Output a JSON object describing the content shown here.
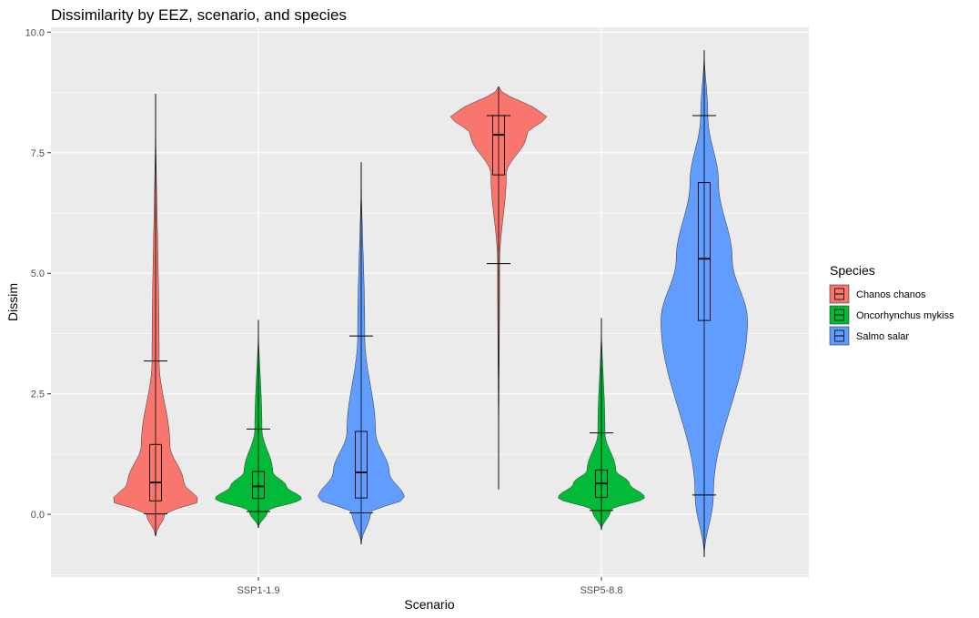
{
  "chart_data": {
    "type": "violin",
    "title": "Dissimilarity by EEZ, scenario, and species",
    "xlabel": "Scenario",
    "ylabel": "Dissim",
    "categories": [
      "SSP1-1.9",
      "SSP5-8.8"
    ],
    "ylim": [
      -1.3,
      10.1
    ],
    "yticks": [
      0.0,
      2.5,
      5.0,
      7.5,
      10.0
    ],
    "ytick_labels": [
      "0.0",
      "2.5",
      "5.0",
      "7.5",
      "10.0"
    ],
    "grid": true,
    "legend": {
      "title": "Species",
      "position": "right"
    },
    "series": [
      {
        "name": "Chanos chanos",
        "color": "#F8766D",
        "values": [
          {
            "category": "SSP1-1.9",
            "min": 0.01,
            "q1": 0.28,
            "median": 0.66,
            "q3": 1.45,
            "max": 3.18,
            "violin_min": -0.45,
            "violin_max": 8.72
          },
          {
            "category": "SSP5-8.8",
            "min": 5.2,
            "q1": 7.04,
            "median": 7.87,
            "q3": 8.27,
            "max": 8.27,
            "violin_min": 0.52,
            "violin_max": 8.87
          }
        ]
      },
      {
        "name": "Oncorhynchus mykiss",
        "color": "#00BA38",
        "values": [
          {
            "category": "SSP1-1.9",
            "min": 0.06,
            "q1": 0.33,
            "median": 0.58,
            "q3": 0.89,
            "max": 1.77,
            "violin_min": -0.28,
            "violin_max": 4.03
          },
          {
            "category": "SSP5-8.8",
            "min": 0.08,
            "q1": 0.35,
            "median": 0.64,
            "q3": 0.92,
            "max": 1.69,
            "violin_min": -0.32,
            "violin_max": 4.07
          }
        ]
      },
      {
        "name": "Salmo salar",
        "color": "#619CFF",
        "values": [
          {
            "category": "SSP1-1.9",
            "min": 0.03,
            "q1": 0.34,
            "median": 0.87,
            "q3": 1.72,
            "max": 3.7,
            "violin_min": -0.62,
            "violin_max": 7.3
          },
          {
            "category": "SSP5-8.8",
            "min": 0.4,
            "q1": 4.02,
            "median": 5.3,
            "q3": 6.88,
            "max": 8.27,
            "violin_min": -0.88,
            "violin_max": 9.62
          }
        ]
      }
    ]
  }
}
